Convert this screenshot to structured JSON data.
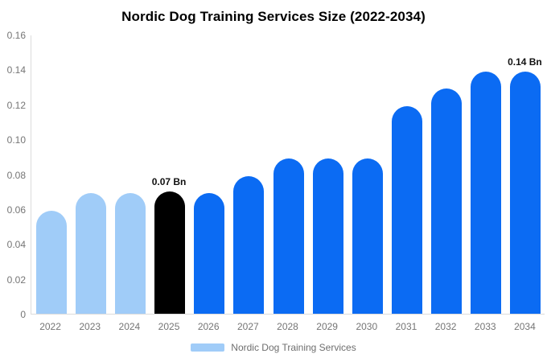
{
  "chart_data": {
    "type": "bar",
    "title": "Nordic Dog Training Services Size (2022-2034)",
    "unit": "Bn",
    "categories": [
      "2022",
      "2023",
      "2024",
      "2025",
      "2026",
      "2027",
      "2028",
      "2029",
      "2030",
      "2031",
      "2032",
      "2033",
      "2034"
    ],
    "values": [
      0.059,
      0.069,
      0.069,
      0.07,
      0.069,
      0.079,
      0.089,
      0.089,
      0.089,
      0.119,
      0.129,
      0.139,
      0.139
    ],
    "bar_colors": [
      "#A0CCF8",
      "#A0CCF8",
      "#A0CCF8",
      "#000000",
      "#0B6BF3",
      "#0B6BF3",
      "#0B6BF3",
      "#0B6BF3",
      "#0B6BF3",
      "#0B6BF3",
      "#0B6BF3",
      "#0B6BF3",
      "#0B6BF3"
    ],
    "annotations": [
      {
        "category": "2025",
        "text": "0.07 Bn"
      },
      {
        "category": "2034",
        "text": "0.14 Bn"
      }
    ],
    "ylim": [
      0,
      0.16
    ],
    "ytick_values": [
      0,
      0.02,
      0.04,
      0.06,
      0.08,
      0.1,
      0.12,
      0.14,
      0.16
    ],
    "ytick_labels": [
      "0",
      "0.02",
      "0.04",
      "0.06",
      "0.08",
      "0.10",
      "0.12",
      "0.14",
      "0.16"
    ],
    "xlabel": "",
    "ylabel": "",
    "grid": false,
    "legend_position": "bottom",
    "legend": [
      {
        "label": "Nordic Dog Training Services",
        "color": "#A0CCF8"
      }
    ]
  },
  "colors": {
    "background": "#FFFFFF",
    "title_text": "#000000",
    "axis_line": "#DCDCDC",
    "axis_tick_text": "#757575",
    "annotation_text": "#111111",
    "legend_text": "#6E6E6E",
    "series_light_blue": "#A0CCF8",
    "series_highlight_black": "#000000",
    "series_blue": "#0B6BF3"
  }
}
